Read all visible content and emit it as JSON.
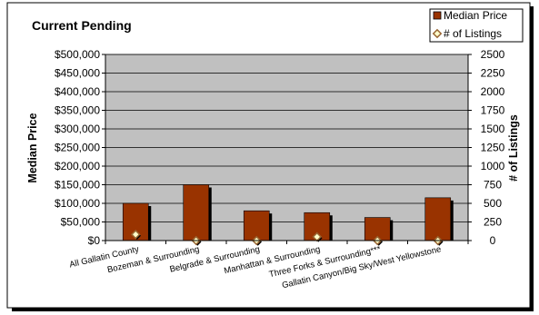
{
  "chart_data": {
    "type": "bar",
    "title": "Current Pending",
    "categories": [
      "All Gallatin County",
      "Bozeman & Surrounding",
      "Belgrade & Surrounding",
      "Manhattan & Surrounding",
      "Three Forks & Surrounding***",
      "Gallatin Canyon/Big Sky/West Yellowstone"
    ],
    "series": [
      {
        "name": "Median Price",
        "axis": "left",
        "kind": "bar",
        "values": [
          100000,
          150000,
          80000,
          75000,
          62000,
          115000
        ]
      },
      {
        "name": "# of Listings",
        "axis": "right",
        "kind": "marker",
        "values": [
          82,
          0,
          0,
          50,
          0,
          0
        ]
      }
    ],
    "ylabel": "Median Price",
    "y2label": "# of Listings",
    "ylim": [
      0,
      500000
    ],
    "y2lim": [
      0,
      2500
    ],
    "yticks": [
      "$0",
      "$50,000",
      "$100,000",
      "$150,000",
      "$200,000",
      "$250,000",
      "$300,000",
      "$350,000",
      "$400,000",
      "$450,000",
      "$500,000"
    ],
    "y2ticks": [
      "0",
      "250",
      "500",
      "750",
      "1000",
      "1250",
      "1500",
      "1750",
      "2000",
      "2250",
      "2500"
    ],
    "grid": true,
    "legend": "top-right",
    "colors": {
      "bar": "#993300",
      "bar_shadow": "#000000",
      "marker": "#ffffcc",
      "marker_outline": "#996633",
      "plot_bg": "#c0c0c0"
    }
  }
}
